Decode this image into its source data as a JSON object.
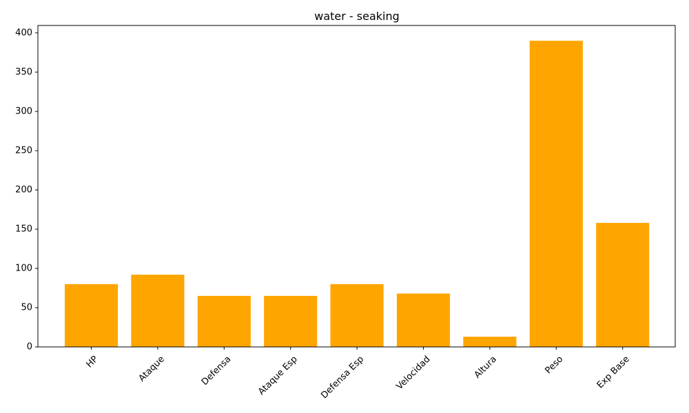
{
  "chart_data": {
    "type": "bar",
    "title": "water - seaking",
    "xlabel": "",
    "ylabel": "",
    "categories": [
      "HP",
      "Ataque",
      "Defensa",
      "Ataque Esp",
      "Defensa Esp",
      "Velocidad",
      "Altura",
      "Peso",
      "Exp Base"
    ],
    "values": [
      80,
      92,
      65,
      65,
      80,
      68,
      13,
      390,
      158
    ],
    "ylim": [
      0,
      409.5
    ],
    "yticks": [
      0,
      50,
      100,
      150,
      200,
      250,
      300,
      350,
      400
    ],
    "bar_color": "#ffa500",
    "grid": false,
    "legend": "none"
  }
}
